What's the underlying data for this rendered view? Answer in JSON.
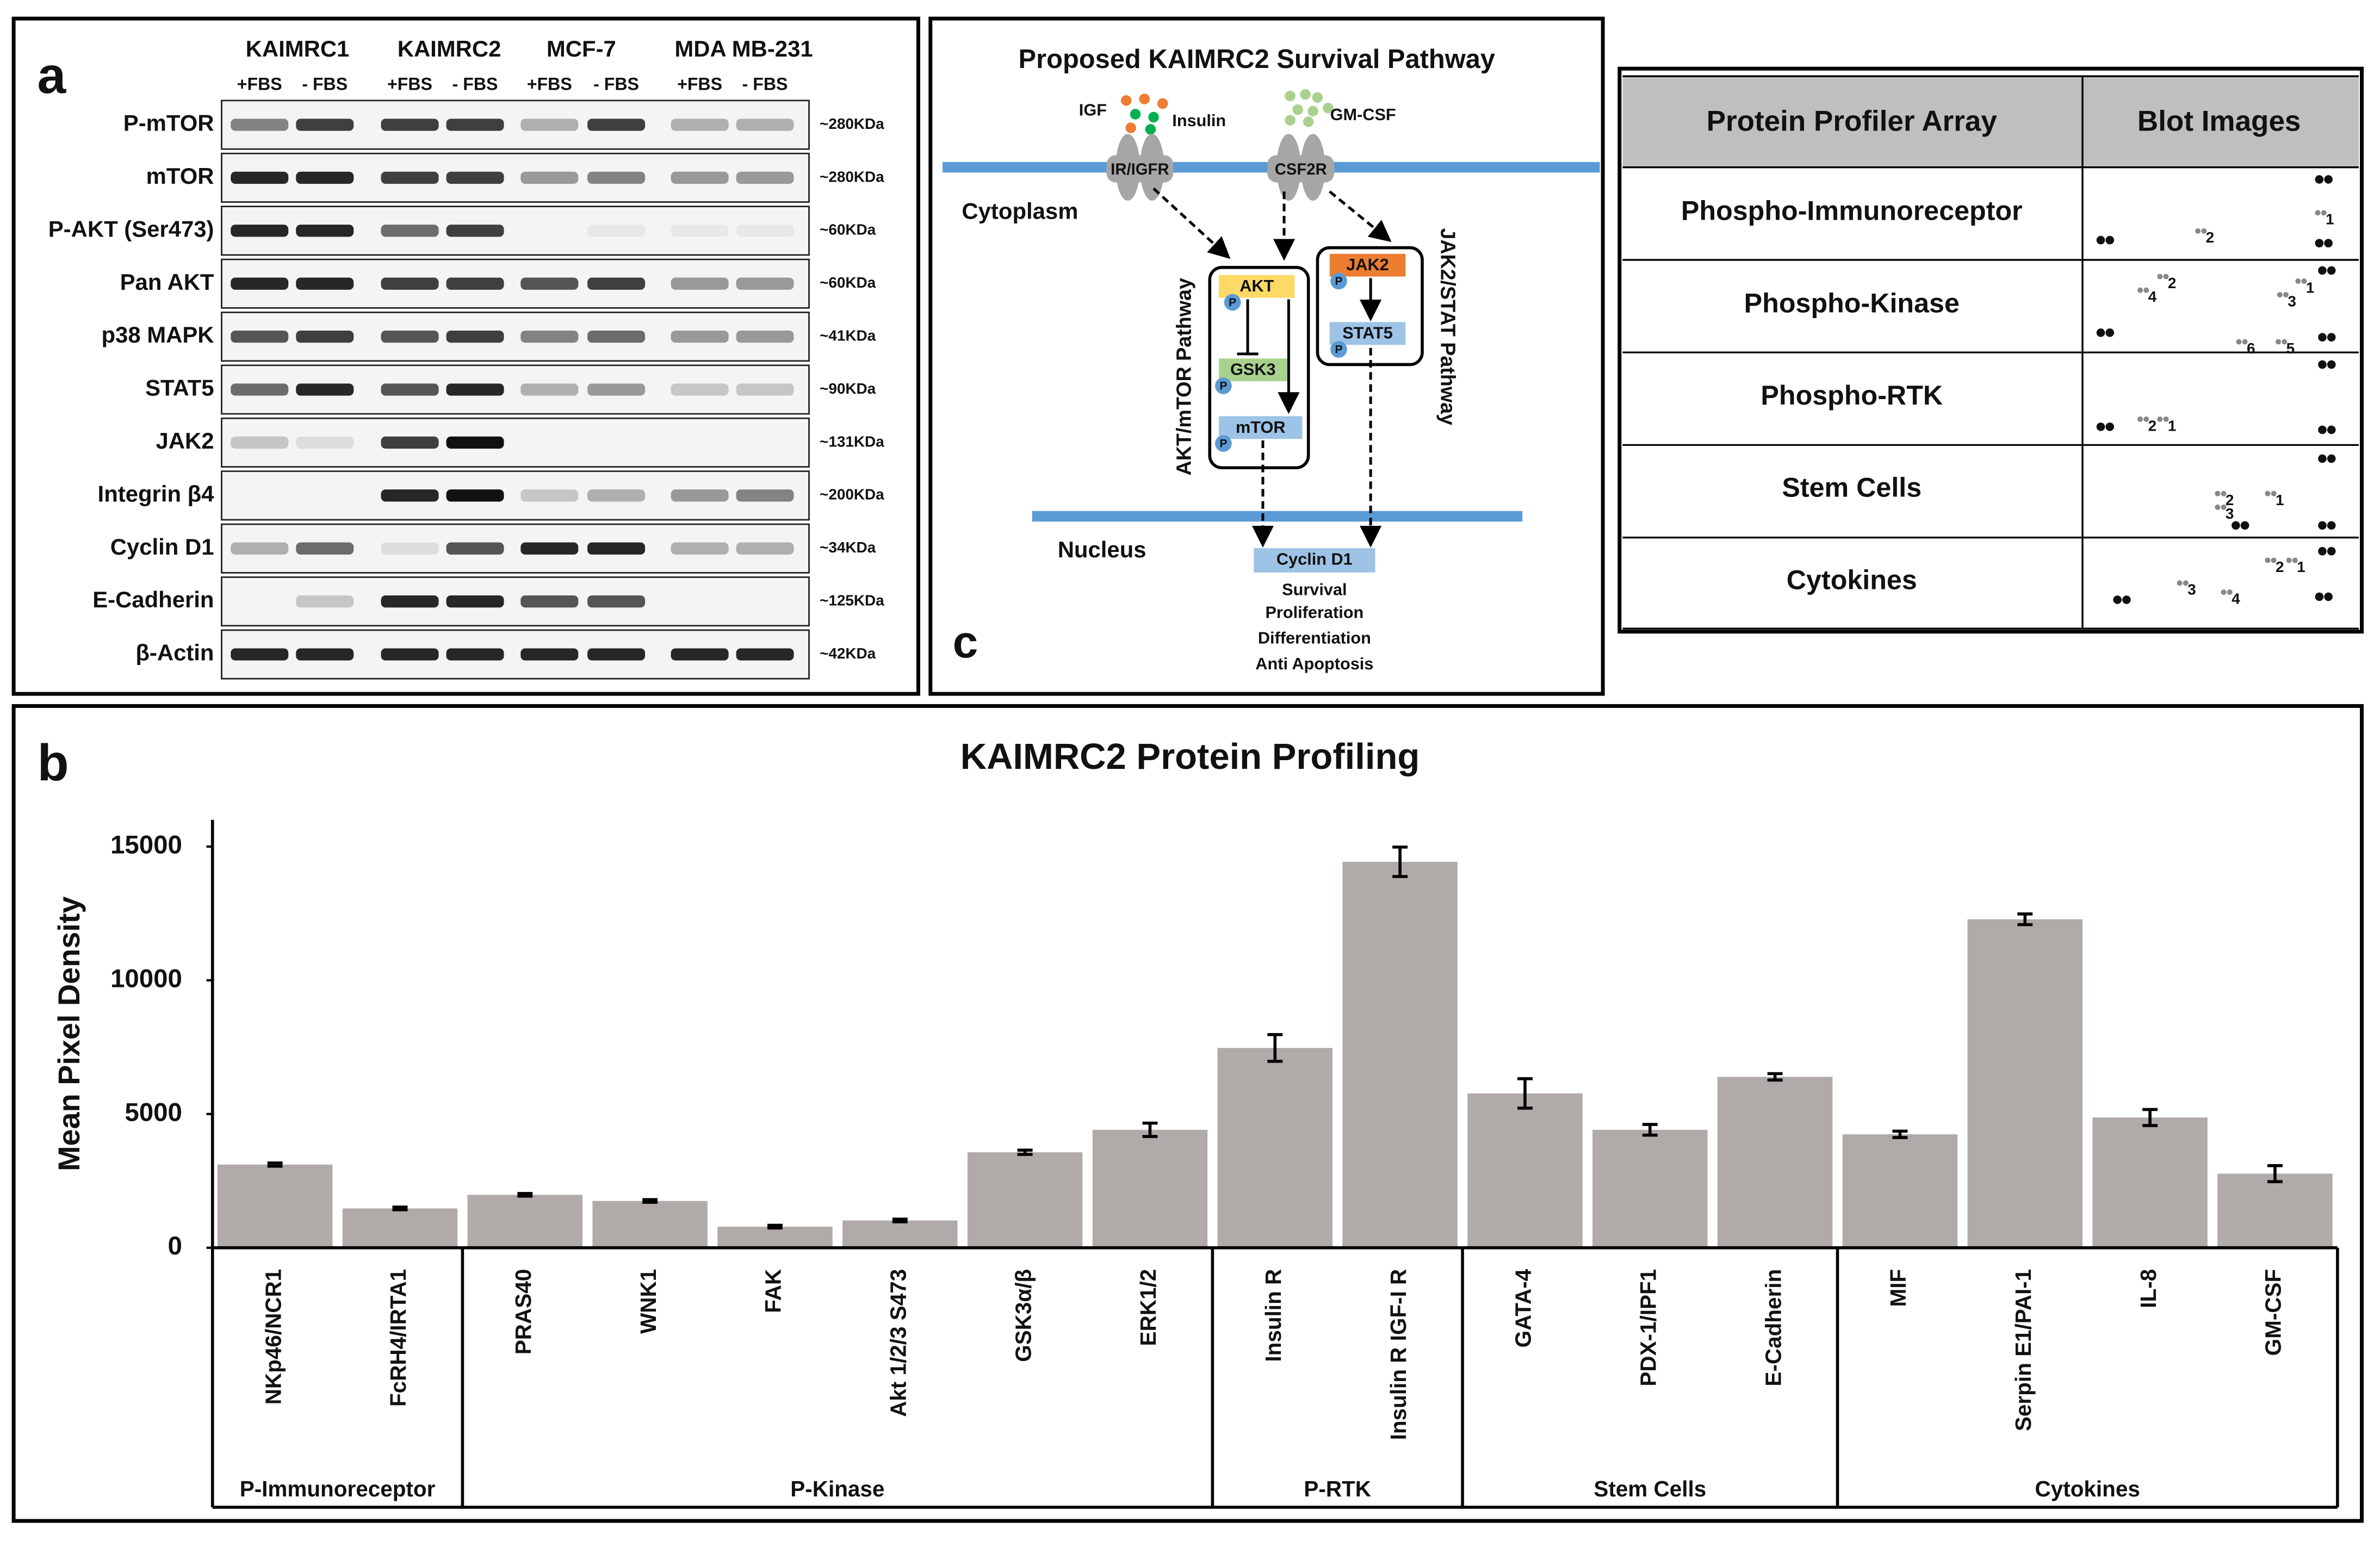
{
  "panel_a": {
    "label": "a",
    "cell_lines": [
      "KAIMRC1",
      "KAIMRC2",
      "MCF-7",
      "MDA MB-231"
    ],
    "conditions": [
      "+FBS",
      "- FBS",
      "+FBS",
      "- FBS",
      "+FBS",
      "- FBS",
      "+FBS",
      "- FBS"
    ],
    "proteins": [
      {
        "name": "P-mTOR",
        "size": "~280KDa"
      },
      {
        "name": "mTOR",
        "size": "~280KDa"
      },
      {
        "name": "P-AKT (Ser473)",
        "size": "~60KDa"
      },
      {
        "name": "Pan AKT",
        "size": "~60KDa"
      },
      {
        "name": "p38 MAPK",
        "size": "~41KDa"
      },
      {
        "name": "STAT5",
        "size": "~90KDa"
      },
      {
        "name": "JAK2",
        "size": "~131KDa"
      },
      {
        "name": "Integrin β4",
        "size": "~200KDa"
      },
      {
        "name": "Cyclin D1",
        "size": "~34KDa"
      },
      {
        "name": "E-Cadherin",
        "size": "~125KDa"
      },
      {
        "name": "β-Actin",
        "size": "~42KDa"
      }
    ]
  },
  "panel_c": {
    "label": "c",
    "title": "Proposed KAIMRC2 Survival Pathway",
    "ligands": [
      "IGF",
      "Insulin",
      "GM-CSF"
    ],
    "receptors": [
      "IR/IGFR",
      "CSF2R"
    ],
    "compartments": [
      "Cytoplasm",
      "Nucleus"
    ],
    "pathways": [
      "AKT/mTOR Pathway",
      "JAK2/STAT Pathway"
    ],
    "nodes": [
      "AKT",
      "GSK3",
      "mTOR",
      "JAK2",
      "STAT5"
    ],
    "phospho": "P",
    "target": "Cyclin D1",
    "outcomes": [
      "Survival",
      "Proliferation",
      "Differentiation",
      "Anti Apoptosis"
    ]
  },
  "table": {
    "header": [
      "Protein Profiler Array",
      "Blot Images"
    ],
    "rows": [
      {
        "name": "Phospho-Immunoreceptor",
        "spots": [
          "1",
          "2"
        ]
      },
      {
        "name": "Phospho-Kinase",
        "spots": [
          "4",
          "2",
          "1",
          "3",
          "6",
          "5"
        ]
      },
      {
        "name": "Phospho-RTK",
        "spots": [
          "2",
          "1"
        ]
      },
      {
        "name": "Stem Cells",
        "spots": [
          "2",
          "3",
          "1"
        ]
      },
      {
        "name": "Cytokines",
        "spots": [
          "3",
          "2",
          "1",
          "4"
        ]
      }
    ]
  },
  "chart_data": {
    "type": "bar",
    "label": "b",
    "title": "KAIMRC2 Protein Profiling",
    "y_label": "Mean Pixel Density",
    "color": "#b0aaa8",
    "ylim": [
      0,
      16000
    ],
    "yticks": [
      0,
      5000,
      10000,
      15000
    ],
    "groups": [
      {
        "name": "P-Immunoreceptor",
        "categories": [
          "NKp46/NCR1",
          "FcRH4/IRTA1"
        ],
        "values": [
          3110,
          1470
        ],
        "errors": [
          60,
          50
        ]
      },
      {
        "name": "P-Kinase",
        "categories": [
          "PRAS40",
          "WNK1",
          "FAK",
          "Akt 1/2/3 S473",
          "GSK3α/β",
          "ERK1/2"
        ],
        "values": [
          1980,
          1750,
          790,
          1020,
          3570,
          4410
        ],
        "errors": [
          50,
          50,
          50,
          50,
          80,
          250
        ]
      },
      {
        "name": "P-RTK",
        "categories": [
          "Insulin R",
          "Insulin R IGF-I R"
        ],
        "values": [
          7470,
          14430
        ],
        "errors": [
          500,
          550
        ]
      },
      {
        "name": "Stem Cells",
        "categories": [
          "GATA-4",
          "PDX-1/IPF1",
          "E-Cadherin"
        ],
        "values": [
          5770,
          4410,
          6390
        ],
        "errors": [
          550,
          200,
          120
        ]
      },
      {
        "name": "Cytokines",
        "categories": [
          "MIF",
          "Serpin E1/PAI-1",
          "IL-8",
          "GM-CSF"
        ],
        "values": [
          4240,
          12280,
          4870,
          2770
        ],
        "errors": [
          120,
          200,
          300,
          300
        ]
      }
    ]
  }
}
